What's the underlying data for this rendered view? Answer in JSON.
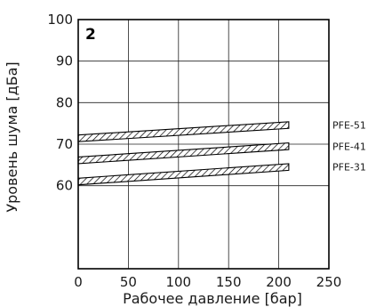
{
  "chart_data": {
    "type": "area",
    "panel_label": "2",
    "xlabel": "Рабочее давление [бар]",
    "ylabel": "Уровень шума [дБа]",
    "xlim": [
      0,
      250
    ],
    "ylim": [
      40,
      100
    ],
    "x_ticks": [
      "0",
      "50",
      "100",
      "150",
      "200",
      "250"
    ],
    "y_ticks": [
      "60",
      "70",
      "80",
      "90",
      "100"
    ],
    "grid": true,
    "series": [
      {
        "name": "PFE-51",
        "x": [
          0,
          210
        ],
        "lower": [
          70.6,
          73.8
        ],
        "upper": [
          72.2,
          75.4
        ]
      },
      {
        "name": "PFE-41",
        "x": [
          0,
          210
        ],
        "lower": [
          65.3,
          68.7
        ],
        "upper": [
          66.9,
          70.3
        ]
      },
      {
        "name": "PFE-31",
        "x": [
          0,
          210
        ],
        "lower": [
          60.2,
          63.7
        ],
        "upper": [
          61.8,
          65.3
        ]
      }
    ]
  }
}
